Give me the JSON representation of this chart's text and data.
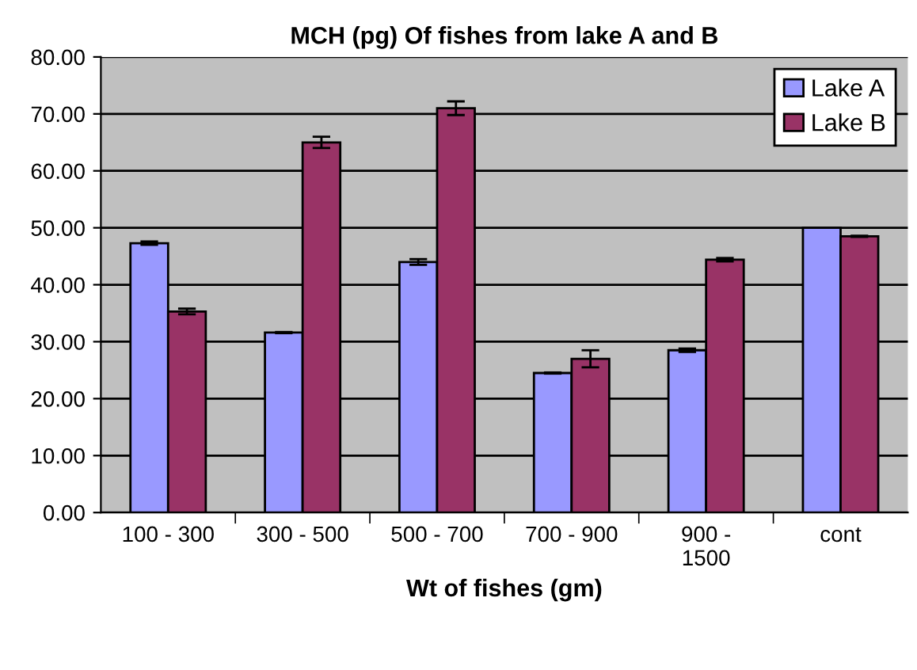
{
  "chart_data": {
    "type": "bar",
    "title": "MCH (pg) Of fishes from lake A and B",
    "xlabel": "Wt of fishes (gm)",
    "categories": [
      "100 - 300",
      "300 - 500",
      "500 - 700",
      "700 - 900",
      "900 -\n1500",
      "cont"
    ],
    "series": [
      {
        "name": "Lake A",
        "color": "#9999ff",
        "values": [
          47.3,
          31.6,
          44.0,
          24.5,
          28.5,
          50.0
        ],
        "errors": [
          0.3,
          0.1,
          0.5,
          0.1,
          0.3,
          null
        ]
      },
      {
        "name": "Lake B",
        "color": "#993366",
        "values": [
          35.3,
          65.0,
          71.0,
          27.0,
          44.4,
          48.5
        ],
        "errors": [
          0.5,
          1.0,
          1.2,
          1.5,
          0.3,
          0.1
        ]
      }
    ],
    "ylim": [
      0,
      80
    ],
    "yticks": [
      {
        "value": 0,
        "label": "0.00"
      },
      {
        "value": 10,
        "label": "10.00"
      },
      {
        "value": 20,
        "label": "20.00"
      },
      {
        "value": 30,
        "label": "30.00"
      },
      {
        "value": 40,
        "label": "40.00"
      },
      {
        "value": 50,
        "label": "50.00"
      },
      {
        "value": 60,
        "label": "60.00"
      },
      {
        "value": 70,
        "label": "70.00"
      },
      {
        "value": 80,
        "label": "80.00"
      }
    ],
    "grid": "y",
    "legend": "top right"
  }
}
